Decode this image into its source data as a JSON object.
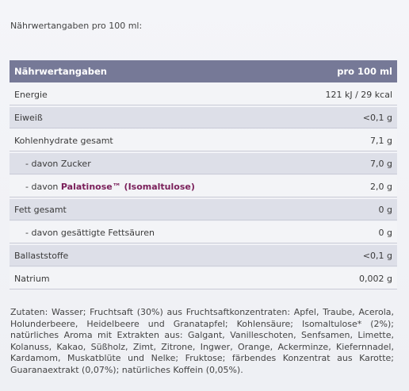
{
  "heading": "Nährwertangaben pro 100 ml:",
  "table": {
    "header": {
      "label": "Nährwertangaben",
      "amount": "pro 100 ml"
    },
    "rows": [
      {
        "label": "Energie",
        "amount": "121 kJ / 29 kcal"
      },
      {
        "label": "Eiweiß",
        "amount": "<0,1 g"
      },
      {
        "label": "Kohlenhydrate gesamt",
        "amount": "7,1 g"
      },
      {
        "label": "- davon Zucker",
        "amount": "7,0 g"
      },
      {
        "label_prefix": "- davon ",
        "label_highlight": "Palatinose™ (Isomaltulose)",
        "amount": "2,0 g"
      },
      {
        "label": "Fett gesamt",
        "amount": "0 g"
      },
      {
        "label": "- davon gesättigte Fettsäuren",
        "amount": "0 g"
      },
      {
        "label": "Ballaststoffe",
        "amount": "<0,1 g"
      },
      {
        "label": "Natrium",
        "amount": "0,002 g"
      }
    ]
  },
  "ingredients": "Zutaten: Wasser; Fruchtsaft (30%) aus Fruchtsaftkonzentraten: Apfel, Traube, Acerola, Holunderbeere, Heidelbeere und Granatapfel; Kohlensäure; Isomaltulose* (2%); natürliches Aroma mit Extrakten aus: Galgant, Vanilleschoten, Senfsamen, Limette, Kolanuss, Kakao, Süßholz, Zimt, Zitrone, Ingwer, Orange, Ackerminze, Kiefernnadel, Kardamom, Muskatblüte und Nelke; Fruktose; färbendes Konzentrat aus Karotte; Guaranaextrakt (0,07%); natürliches Koffein (0,05%)."
}
